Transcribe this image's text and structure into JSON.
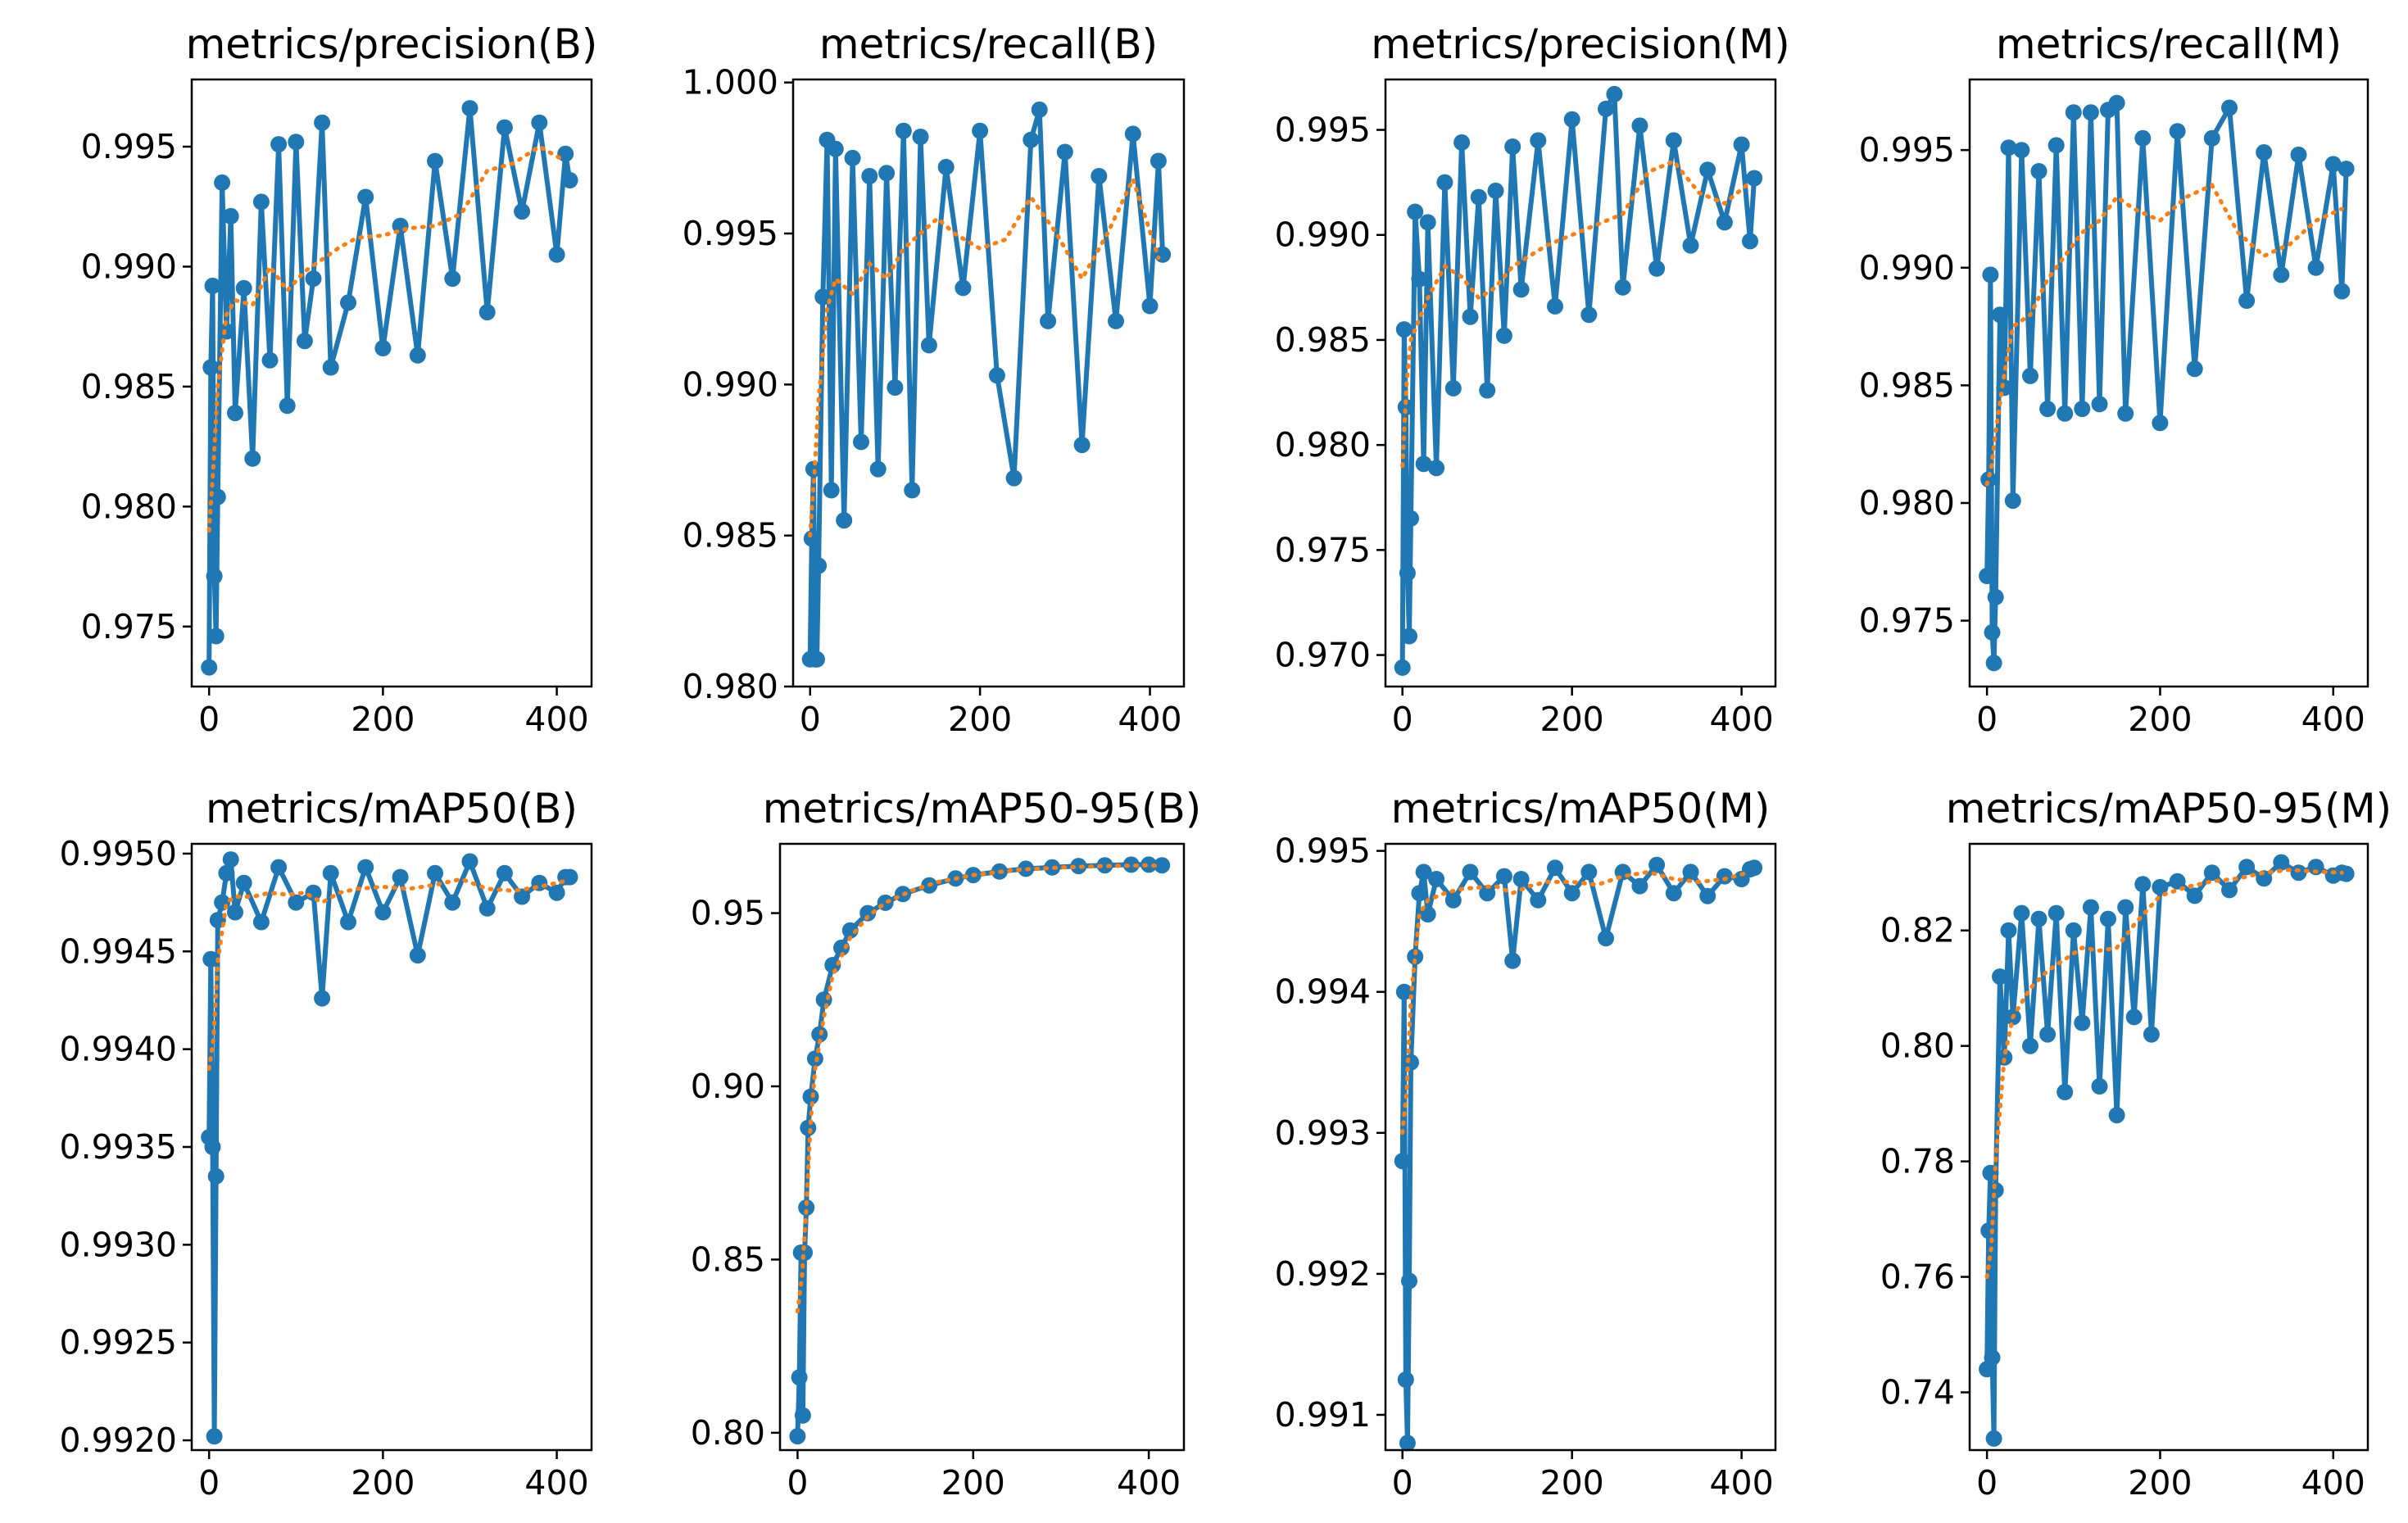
{
  "figure": {
    "description_colors": {
      "raw_series": "#1f77b4",
      "smooth_series": "#ff7f0e",
      "axes": "#000000"
    },
    "x_ticks": [
      0,
      200,
      400
    ]
  },
  "chart_data": [
    {
      "type": "line",
      "title": "metrics/precision(B)",
      "xlim": [
        -20,
        440
      ],
      "ylim": [
        0.9725,
        0.9978
      ],
      "yticks": [
        0.975,
        0.98,
        0.985,
        0.99,
        0.995
      ],
      "ytick_labels": [
        "0.975",
        "0.980",
        "0.985",
        "0.990",
        "0.995"
      ],
      "raw": {
        "name": "results",
        "x": [
          0,
          2,
          4,
          6,
          8,
          10,
          15,
          20,
          25,
          30,
          40,
          50,
          60,
          70,
          80,
          90,
          100,
          110,
          120,
          130,
          140,
          160,
          180,
          200,
          220,
          240,
          260,
          280,
          300,
          320,
          340,
          360,
          380,
          400,
          410,
          415
        ],
        "y": [
          0.9733,
          0.9858,
          0.9892,
          0.9771,
          0.9746,
          0.9804,
          0.9935,
          0.9873,
          0.9921,
          0.9839,
          0.9891,
          0.982,
          0.9927,
          0.9861,
          0.9951,
          0.9842,
          0.9952,
          0.9869,
          0.9895,
          0.996,
          0.9858,
          0.9885,
          0.9929,
          0.9866,
          0.9917,
          0.9863,
          0.9944,
          0.9895,
          0.9966,
          0.9881,
          0.9958,
          0.9923,
          0.996,
          0.9905,
          0.9947,
          0.9936
        ]
      },
      "smooth": {
        "name": "smooth",
        "x": [
          0,
          5,
          10,
          20,
          30,
          50,
          70,
          90,
          110,
          130,
          150,
          170,
          200,
          230,
          260,
          290,
          320,
          350,
          380,
          410
        ],
        "y": [
          0.979,
          0.9817,
          0.985,
          0.988,
          0.9886,
          0.9884,
          0.99,
          0.989,
          0.9898,
          0.9903,
          0.9908,
          0.9912,
          0.9913,
          0.9916,
          0.9917,
          0.9922,
          0.994,
          0.9943,
          0.995,
          0.9944
        ]
      }
    },
    {
      "type": "line",
      "title": "metrics/recall(B)",
      "xlim": [
        -20,
        440
      ],
      "ylim": [
        0.98,
        1.0001
      ],
      "yticks": [
        0.98,
        0.985,
        0.99,
        0.995,
        1.0
      ],
      "ytick_labels": [
        "0.980",
        "0.985",
        "0.990",
        "0.995",
        "1.000"
      ],
      "raw": {
        "name": "results",
        "x": [
          0,
          2,
          4,
          6,
          8,
          10,
          15,
          20,
          25,
          30,
          40,
          50,
          60,
          70,
          80,
          90,
          100,
          110,
          120,
          130,
          140,
          160,
          180,
          200,
          220,
          240,
          260,
          270,
          280,
          300,
          320,
          340,
          360,
          380,
          400,
          410,
          415
        ],
        "y": [
          0.9809,
          0.9849,
          0.9872,
          0.9809,
          0.9809,
          0.984,
          0.9929,
          0.9981,
          0.9865,
          0.9978,
          0.9855,
          0.9975,
          0.9881,
          0.9969,
          0.9872,
          0.997,
          0.9899,
          0.9984,
          0.9865,
          0.9982,
          0.9913,
          0.9972,
          0.9932,
          0.9984,
          0.9903,
          0.9869,
          0.9981,
          0.9991,
          0.9921,
          0.9977,
          0.988,
          0.9969,
          0.9921,
          0.9983,
          0.9926,
          0.9974,
          0.9943
        ]
      },
      "smooth": {
        "name": "smooth",
        "x": [
          0,
          5,
          10,
          20,
          30,
          50,
          70,
          90,
          110,
          130,
          150,
          170,
          200,
          230,
          260,
          290,
          320,
          350,
          380,
          410
        ],
        "y": [
          0.985,
          0.987,
          0.9895,
          0.9925,
          0.9935,
          0.993,
          0.994,
          0.9935,
          0.9945,
          0.995,
          0.9955,
          0.995,
          0.9945,
          0.9948,
          0.9962,
          0.995,
          0.9935,
          0.995,
          0.9968,
          0.9942
        ]
      }
    },
    {
      "type": "line",
      "title": "metrics/precision(M)",
      "xlim": [
        -20,
        440
      ],
      "ylim": [
        0.9685,
        0.9974
      ],
      "yticks": [
        0.97,
        0.975,
        0.98,
        0.985,
        0.99,
        0.995
      ],
      "ytick_labels": [
        "0.970",
        "0.975",
        "0.980",
        "0.985",
        "0.990",
        "0.995"
      ],
      "raw": {
        "name": "results",
        "x": [
          0,
          2,
          4,
          6,
          8,
          10,
          15,
          20,
          25,
          30,
          40,
          50,
          60,
          70,
          80,
          90,
          100,
          110,
          120,
          130,
          140,
          160,
          180,
          200,
          220,
          240,
          250,
          260,
          280,
          300,
          320,
          340,
          360,
          380,
          400,
          410,
          415
        ],
        "y": [
          0.9694,
          0.9855,
          0.9818,
          0.9739,
          0.9709,
          0.9765,
          0.9911,
          0.9879,
          0.9791,
          0.9906,
          0.9789,
          0.9925,
          0.9827,
          0.9944,
          0.9861,
          0.9918,
          0.9826,
          0.9921,
          0.9852,
          0.9942,
          0.9874,
          0.9945,
          0.9866,
          0.9955,
          0.9862,
          0.996,
          0.9967,
          0.9875,
          0.9952,
          0.9884,
          0.9945,
          0.9895,
          0.9931,
          0.9906,
          0.9943,
          0.9897,
          0.9927
        ]
      },
      "smooth": {
        "name": "smooth",
        "x": [
          0,
          5,
          10,
          20,
          30,
          50,
          70,
          90,
          110,
          130,
          150,
          170,
          200,
          230,
          260,
          290,
          320,
          350,
          380,
          410
        ],
        "y": [
          0.979,
          0.983,
          0.985,
          0.986,
          0.987,
          0.9885,
          0.988,
          0.987,
          0.9875,
          0.9885,
          0.989,
          0.9895,
          0.99,
          0.9905,
          0.991,
          0.993,
          0.9935,
          0.992,
          0.9915,
          0.9925
        ]
      }
    },
    {
      "type": "line",
      "title": "metrics/recall(M)",
      "xlim": [
        -20,
        440
      ],
      "ylim": [
        0.9722,
        0.998
      ],
      "yticks": [
        0.975,
        0.98,
        0.985,
        0.99,
        0.995
      ],
      "ytick_labels": [
        "0.975",
        "0.980",
        "0.985",
        "0.990",
        "0.995"
      ],
      "raw": {
        "name": "results",
        "x": [
          0,
          2,
          4,
          6,
          8,
          10,
          15,
          20,
          25,
          30,
          40,
          50,
          60,
          70,
          80,
          90,
          100,
          110,
          120,
          130,
          140,
          150,
          160,
          180,
          200,
          220,
          240,
          260,
          280,
          300,
          320,
          340,
          360,
          380,
          400,
          410,
          415
        ],
        "y": [
          0.9769,
          0.981,
          0.9897,
          0.9745,
          0.9732,
          0.976,
          0.988,
          0.9849,
          0.9951,
          0.9801,
          0.995,
          0.9854,
          0.9941,
          0.984,
          0.9952,
          0.9838,
          0.9966,
          0.984,
          0.9966,
          0.9842,
          0.9967,
          0.997,
          0.9838,
          0.9955,
          0.9834,
          0.9958,
          0.9857,
          0.9955,
          0.9968,
          0.9886,
          0.9949,
          0.9897,
          0.9948,
          0.99,
          0.9944,
          0.989,
          0.9942
        ]
      },
      "smooth": {
        "name": "smooth",
        "x": [
          0,
          5,
          10,
          20,
          30,
          50,
          70,
          90,
          110,
          130,
          150,
          170,
          200,
          230,
          260,
          290,
          320,
          350,
          380,
          410
        ],
        "y": [
          0.9808,
          0.9815,
          0.983,
          0.9855,
          0.9875,
          0.988,
          0.9895,
          0.9905,
          0.9915,
          0.992,
          0.993,
          0.9925,
          0.992,
          0.993,
          0.9935,
          0.9915,
          0.9905,
          0.991,
          0.992,
          0.9925
        ]
      }
    },
    {
      "type": "line",
      "title": "metrics/mAP50(B)",
      "xlim": [
        -20,
        440
      ],
      "ylim": [
        0.99195,
        0.99505
      ],
      "yticks": [
        0.992,
        0.9925,
        0.993,
        0.9935,
        0.994,
        0.9945,
        0.995
      ],
      "ytick_labels": [
        "0.9920",
        "0.9925",
        "0.9930",
        "0.9935",
        "0.9940",
        "0.9945",
        "0.9950"
      ],
      "raw": {
        "name": "results",
        "x": [
          0,
          2,
          4,
          6,
          8,
          10,
          15,
          20,
          25,
          30,
          40,
          60,
          80,
          100,
          120,
          130,
          140,
          160,
          180,
          200,
          220,
          240,
          260,
          280,
          300,
          320,
          340,
          360,
          380,
          400,
          410,
          415
        ],
        "y": [
          0.99355,
          0.99446,
          0.9935,
          0.99202,
          0.99335,
          0.99466,
          0.99475,
          0.9949,
          0.99497,
          0.9947,
          0.99485,
          0.99465,
          0.99493,
          0.99475,
          0.9948,
          0.99426,
          0.9949,
          0.99465,
          0.99493,
          0.9947,
          0.99488,
          0.99448,
          0.9949,
          0.99475,
          0.99496,
          0.99472,
          0.9949,
          0.99478,
          0.99485,
          0.9948,
          0.99488,
          0.99488
        ]
      },
      "smooth": {
        "name": "smooth",
        "x": [
          0,
          5,
          10,
          20,
          30,
          50,
          70,
          90,
          110,
          130,
          150,
          170,
          200,
          230,
          260,
          290,
          320,
          350,
          380,
          410
        ],
        "y": [
          0.9939,
          0.99405,
          0.99445,
          0.99475,
          0.99478,
          0.99478,
          0.9948,
          0.99479,
          0.9948,
          0.99475,
          0.9948,
          0.99482,
          0.99483,
          0.99482,
          0.99484,
          0.99487,
          0.99482,
          0.99481,
          0.99483,
          0.99486
        ]
      }
    },
    {
      "type": "line",
      "title": "metrics/mAP50-95(B)",
      "xlim": [
        -20,
        440
      ],
      "ylim": [
        0.795,
        0.97
      ],
      "yticks": [
        0.8,
        0.85,
        0.9,
        0.95
      ],
      "ytick_labels": [
        "0.80",
        "0.85",
        "0.90",
        "0.95"
      ],
      "raw": {
        "name": "results",
        "x": [
          0,
          2,
          4,
          6,
          8,
          10,
          12,
          15,
          20,
          25,
          30,
          40,
          50,
          60,
          80,
          100,
          120,
          150,
          180,
          200,
          230,
          260,
          290,
          320,
          350,
          380,
          400,
          415
        ],
        "y": [
          0.799,
          0.816,
          0.852,
          0.805,
          0.852,
          0.865,
          0.888,
          0.897,
          0.908,
          0.915,
          0.925,
          0.935,
          0.94,
          0.945,
          0.95,
          0.953,
          0.9555,
          0.958,
          0.96,
          0.961,
          0.962,
          0.9628,
          0.9632,
          0.9636,
          0.9638,
          0.964,
          0.964,
          0.9638
        ]
      },
      "smooth": {
        "name": "smooth",
        "x": [
          0,
          5,
          10,
          15,
          20,
          30,
          40,
          60,
          80,
          100,
          130,
          160,
          200,
          250,
          300,
          350,
          400,
          415
        ],
        "y": [
          0.835,
          0.845,
          0.865,
          0.89,
          0.905,
          0.92,
          0.932,
          0.943,
          0.949,
          0.953,
          0.9565,
          0.959,
          0.961,
          0.9625,
          0.9632,
          0.9636,
          0.9638,
          0.9636
        ]
      }
    },
    {
      "type": "line",
      "title": "metrics/mAP50(M)",
      "xlim": [
        -20,
        440
      ],
      "ylim": [
        0.99075,
        0.99505
      ],
      "yticks": [
        0.991,
        0.992,
        0.993,
        0.994,
        0.995
      ],
      "ytick_labels": [
        "0.991",
        "0.992",
        "0.993",
        "0.994",
        "0.995"
      ],
      "raw": {
        "name": "results",
        "x": [
          0,
          2,
          4,
          6,
          8,
          10,
          15,
          20,
          25,
          30,
          40,
          60,
          80,
          100,
          120,
          130,
          140,
          160,
          180,
          200,
          220,
          240,
          260,
          280,
          300,
          320,
          340,
          360,
          380,
          400,
          410,
          415
        ],
        "y": [
          0.9928,
          0.994,
          0.99125,
          0.9908,
          0.99195,
          0.9935,
          0.99425,
          0.9947,
          0.99485,
          0.99455,
          0.9948,
          0.99465,
          0.99485,
          0.9947,
          0.99482,
          0.99422,
          0.9948,
          0.99465,
          0.99488,
          0.9947,
          0.99485,
          0.99438,
          0.99485,
          0.99475,
          0.9949,
          0.9947,
          0.99485,
          0.99468,
          0.99482,
          0.9948,
          0.99487,
          0.99488
        ]
      },
      "smooth": {
        "name": "smooth",
        "x": [
          0,
          5,
          10,
          20,
          30,
          50,
          70,
          90,
          110,
          130,
          150,
          170,
          200,
          230,
          260,
          290,
          320,
          350,
          380,
          410
        ],
        "y": [
          0.993,
          0.9933,
          0.99395,
          0.99455,
          0.99465,
          0.9947,
          0.99473,
          0.99474,
          0.99475,
          0.9947,
          0.99475,
          0.99478,
          0.99478,
          0.99476,
          0.99482,
          0.99485,
          0.9948,
          0.99478,
          0.9948,
          0.99485
        ]
      }
    },
    {
      "type": "line",
      "title": "metrics/mAP50-95(M)",
      "xlim": [
        -20,
        440
      ],
      "ylim": [
        0.73,
        0.835
      ],
      "yticks": [
        0.74,
        0.76,
        0.78,
        0.8,
        0.82
      ],
      "ytick_labels": [
        "0.74",
        "0.76",
        "0.78",
        "0.80",
        "0.82"
      ],
      "raw": {
        "name": "results",
        "x": [
          0,
          2,
          4,
          6,
          8,
          10,
          15,
          20,
          25,
          30,
          40,
          50,
          60,
          70,
          80,
          90,
          100,
          110,
          120,
          130,
          140,
          150,
          160,
          170,
          180,
          190,
          200,
          220,
          240,
          260,
          280,
          300,
          320,
          340,
          360,
          380,
          400,
          410,
          415
        ],
        "y": [
          0.744,
          0.768,
          0.778,
          0.746,
          0.732,
          0.775,
          0.812,
          0.798,
          0.82,
          0.805,
          0.823,
          0.8,
          0.822,
          0.802,
          0.823,
          0.792,
          0.82,
          0.804,
          0.824,
          0.793,
          0.822,
          0.788,
          0.824,
          0.805,
          0.828,
          0.802,
          0.8275,
          0.8285,
          0.826,
          0.83,
          0.827,
          0.831,
          0.829,
          0.8318,
          0.83,
          0.831,
          0.8295,
          0.83,
          0.8298
        ]
      },
      "smooth": {
        "name": "smooth",
        "x": [
          0,
          5,
          10,
          20,
          30,
          50,
          70,
          90,
          110,
          130,
          150,
          170,
          200,
          230,
          260,
          290,
          320,
          350,
          380,
          410
        ],
        "y": [
          0.76,
          0.765,
          0.78,
          0.798,
          0.805,
          0.81,
          0.813,
          0.815,
          0.817,
          0.8165,
          0.817,
          0.821,
          0.826,
          0.8275,
          0.8285,
          0.829,
          0.83,
          0.8305,
          0.8302,
          0.83
        ]
      }
    }
  ]
}
